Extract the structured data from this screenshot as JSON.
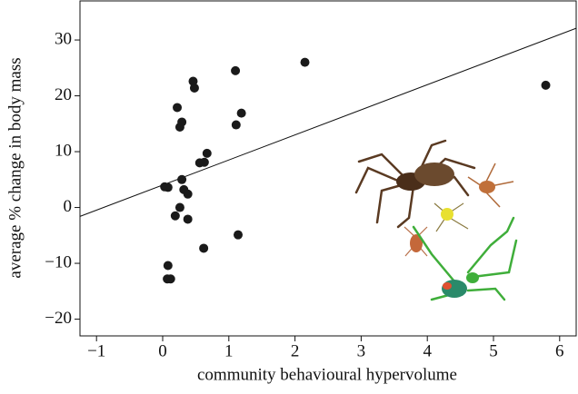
{
  "chart_data": {
    "type": "scatter",
    "xlabel": "community behavioural hypervolume",
    "ylabel": "average % change in body mass",
    "x": [
      0.03,
      0.08,
      0.22,
      0.26,
      0.29,
      0.46,
      0.48,
      1.1,
      2.15,
      1.19,
      1.11,
      0.67,
      0.56,
      0.63,
      0.29,
      0.32,
      0.38,
      0.26,
      0.19,
      0.38,
      0.62,
      1.14,
      0.08,
      0.07,
      0.12,
      5.79
    ],
    "values": [
      3.7,
      3.6,
      17.9,
      14.4,
      15.3,
      22.6,
      21.4,
      24.5,
      26.0,
      16.9,
      14.8,
      9.7,
      8.0,
      8.1,
      5.0,
      3.2,
      2.4,
      0,
      -1.5,
      -2.1,
      -7.3,
      -4.9,
      -10.4,
      -12.8,
      -12.8,
      21.9
    ],
    "color": "#1a1a1a",
    "trend_line": {
      "x": [
        -1.25,
        6.25
      ],
      "values": [
        -1.6,
        32.1
      ],
      "color": "#111111"
    },
    "xlim": [
      -1.25,
      6.25
    ],
    "ylim": [
      -23,
      37
    ],
    "xticks": [
      {
        "value": -1,
        "label": "−1"
      },
      0,
      1,
      2,
      3,
      4,
      5,
      6
    ],
    "yticks": [
      {
        "value": -20,
        "label": "−20"
      },
      {
        "value": -10,
        "label": "−10"
      },
      0,
      10,
      20,
      30
    ],
    "grid": false
  }
}
